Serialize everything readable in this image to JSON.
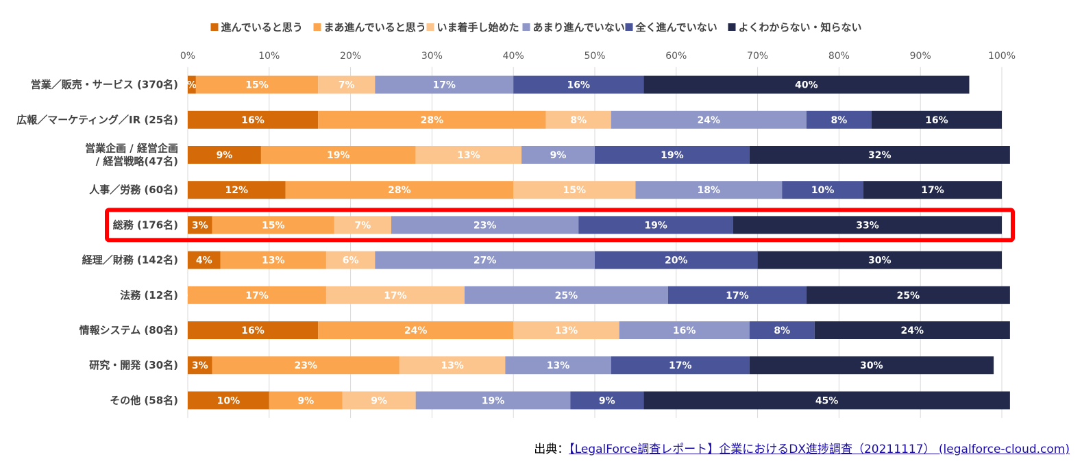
{
  "chart_data": {
    "type": "bar",
    "orientation": "horizontal",
    "stacked": "percent",
    "legend_position": "top",
    "grid": true,
    "xlim": [
      0,
      100
    ],
    "x_ticks": [
      "0%",
      "10%",
      "20%",
      "30%",
      "40%",
      "50%",
      "60%",
      "70%",
      "80%",
      "90%",
      "100%"
    ],
    "categories": [
      "営業／販売・サービス (370名)",
      "広報／マーケティング／IR (25名)",
      "営業企画 / 経営企画 / 経営戦略(47名)",
      "人事／労務 (60名)",
      "総務 (176名)",
      "経理／財務 (142名)",
      "法務 (12名)",
      "情報システム (80名)",
      "研究・開発 (30名)",
      "その他 (58名)"
    ],
    "category_lines": [
      [
        "営業／販売・サービス (370名)"
      ],
      [
        "広報／マーケティング／IR (25名)"
      ],
      [
        "営業企画 / 経営企画",
        "/ 経営戦略(47名)"
      ],
      [
        "人事／労務 (60名)"
      ],
      [
        "総務 (176名)"
      ],
      [
        "経理／財務 (142名)"
      ],
      [
        "法務 (12名)"
      ],
      [
        "情報システム (80名)"
      ],
      [
        "研究・開発 (30名)"
      ],
      [
        "その他 (58名)"
      ]
    ],
    "highlight_category_index": 4,
    "highlight_color": "#ff0000",
    "series": [
      {
        "name": "進んでいると思う",
        "color": "#d46b08",
        "values": [
          1,
          16,
          9,
          12,
          3,
          4,
          0,
          16,
          3,
          10
        ],
        "labels": [
          "%",
          "16%",
          "9%",
          "12%",
          "3%",
          "4%",
          "%",
          "16%",
          "3%",
          "10%"
        ]
      },
      {
        "name": "まあ進んでいると思う",
        "color": "#fba64f",
        "values": [
          15,
          28,
          19,
          28,
          15,
          13,
          17,
          24,
          23,
          9
        ],
        "labels": [
          "15%",
          "28%",
          "19%",
          "28%",
          "15%",
          "13%",
          "17%",
          "24%",
          "23%",
          "9%"
        ]
      },
      {
        "name": "いま着手し始めた",
        "color": "#fdc58e",
        "values": [
          7,
          8,
          13,
          15,
          7,
          6,
          17,
          13,
          13,
          9
        ],
        "labels": [
          "7%",
          "8%",
          "13%",
          "15%",
          "7%",
          "6%",
          "17%",
          "13%",
          "13%",
          "9%"
        ]
      },
      {
        "name": "あまり進んでいない",
        "color": "#8e97c8",
        "values": [
          17,
          24,
          9,
          18,
          23,
          27,
          25,
          16,
          13,
          19
        ],
        "labels": [
          "17%",
          "24%",
          "9%",
          "18%",
          "23%",
          "27%",
          "25%",
          "16%",
          "13%",
          "19%"
        ]
      },
      {
        "name": "全く進んでいない",
        "color": "#4a5499",
        "values": [
          16,
          8,
          19,
          10,
          19,
          20,
          17,
          8,
          17,
          9
        ],
        "labels": [
          "16%",
          "8%",
          "19%",
          "10%",
          "19%",
          "20%",
          "17%",
          "8%",
          "17%",
          "9%"
        ]
      },
      {
        "name": "よくわからない・知らない",
        "color": "#22294a",
        "values": [
          40,
          16,
          32,
          17,
          33,
          30,
          25,
          24,
          30,
          45
        ],
        "labels": [
          "40%",
          "16%",
          "32%",
          "17%",
          "33%",
          "30%",
          "25%",
          "24%",
          "30%",
          "45%"
        ]
      }
    ]
  },
  "source": {
    "prefix": "出典：",
    "link_text": "【LegalForce調査レポート】企業におけるDX進捗調査（20211117） (legalforce-cloud.com)"
  }
}
